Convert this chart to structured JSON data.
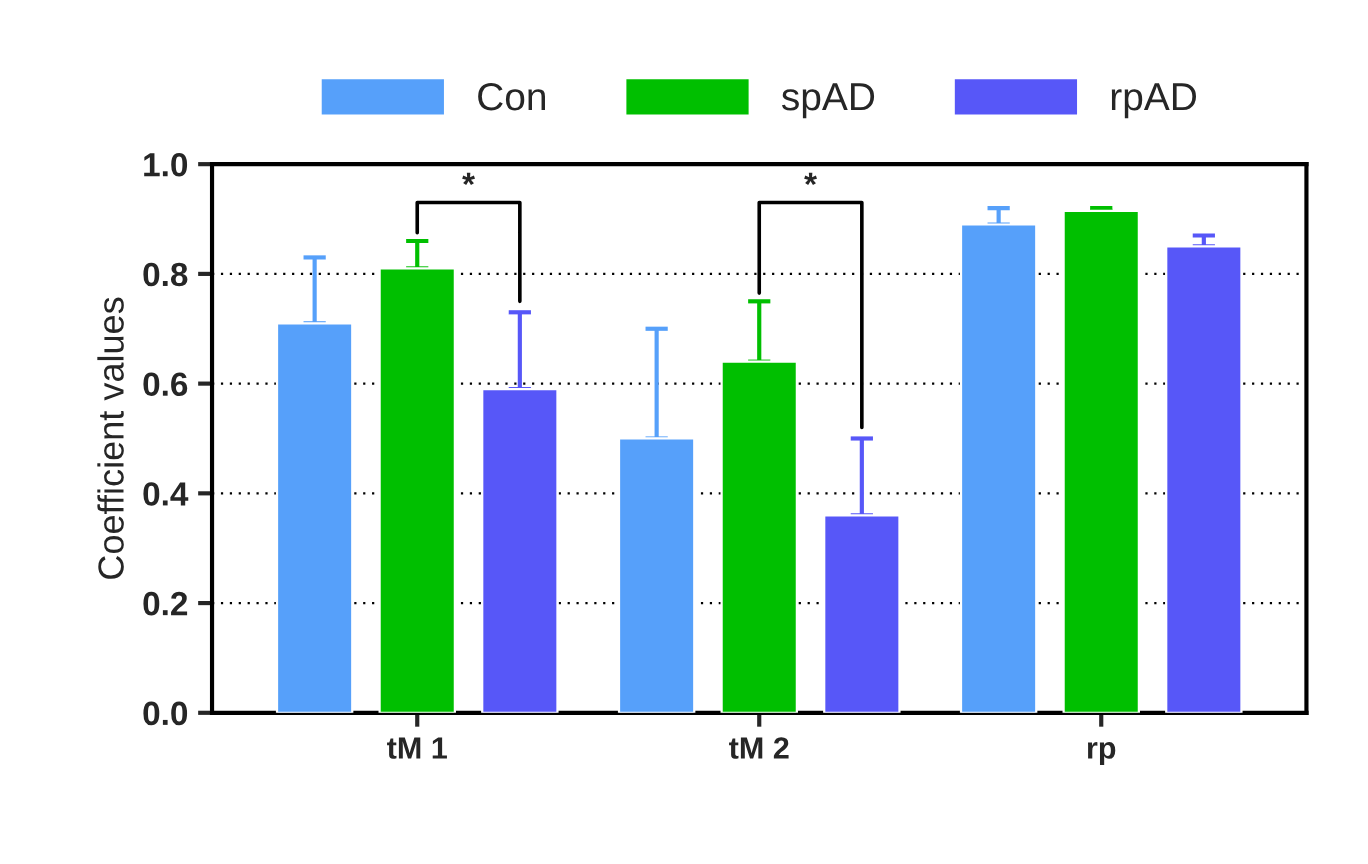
{
  "chart_data": {
    "type": "bar",
    "ylabel": "Coefficient values",
    "categories": [
      "tM 1",
      "tM 2",
      "rp"
    ],
    "series": [
      {
        "name": "Con",
        "color": "#56a0fa",
        "values": [
          0.71,
          0.5,
          0.89
        ],
        "errors": [
          [
            0.71,
            0.83
          ],
          [
            0.5,
            0.7
          ],
          [
            0.89,
            0.92
          ]
        ]
      },
      {
        "name": "spAD",
        "color": "#00bf00",
        "values": [
          0.81,
          0.64,
          0.915
        ],
        "errors": [
          [
            0.81,
            0.86
          ],
          [
            0.64,
            0.75
          ],
          [
            0.915,
            0.92
          ]
        ]
      },
      {
        "name": "rpAD",
        "color": "#5757f8",
        "values": [
          0.59,
          0.36,
          0.85
        ],
        "errors": [
          [
            0.59,
            0.73
          ],
          [
            0.36,
            0.5
          ],
          [
            0.85,
            0.87
          ]
        ]
      }
    ],
    "ylim": [
      0,
      1.0
    ],
    "yticks": [
      {
        "value": 0,
        "label": "0.0"
      },
      0.2,
      0.4,
      0.6,
      0.8,
      {
        "value": 1.0,
        "label": "1.0"
      }
    ],
    "grid": "y",
    "legend": "top",
    "annotations": [
      "*",
      "*"
    ]
  }
}
